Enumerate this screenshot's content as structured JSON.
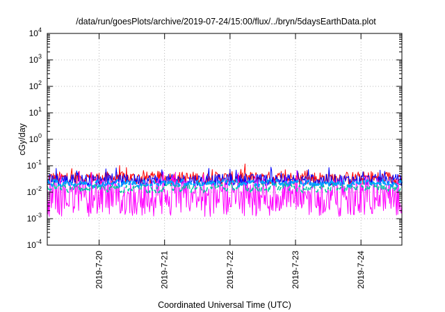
{
  "chart_data": {
    "type": "line",
    "title": "/data/run/goesPlots/archive/2019-07-24/15:00/flux/../bryn/5daysEarthData.plot",
    "xlabel": "Coordinated Universal Time (UTC)",
    "ylabel": "cGy/day",
    "xlim": [
      "2019-07-19T05:00",
      "2019-07-24T15:00"
    ],
    "x_ticks": [
      "2019-7-20",
      "2019-7-21",
      "2019-7-22",
      "2019-7-23",
      "2019-7-24"
    ],
    "x_tick_dates": [
      "2019-07-20",
      "2019-07-21",
      "2019-07-22",
      "2019-07-23",
      "2019-07-24"
    ],
    "y_scale": "log",
    "ylim": [
      0.0001,
      10000
    ],
    "y_ticks": [
      {
        "base": "10",
        "exp": "4",
        "value": 10000
      },
      {
        "base": "10",
        "exp": "3",
        "value": 1000
      },
      {
        "base": "10",
        "exp": "2",
        "value": 100
      },
      {
        "base": "10",
        "exp": "1",
        "value": 10
      },
      {
        "base": "10",
        "exp": "0",
        "value": 1
      },
      {
        "base": "10",
        "exp": "-1",
        "value": 0.1
      },
      {
        "base": "10",
        "exp": "-2",
        "value": 0.01
      },
      {
        "base": "10",
        "exp": "-3",
        "value": 0.001
      },
      {
        "base": "10",
        "exp": "-4",
        "value": 0.0001
      }
    ],
    "grid": true,
    "legend": "none",
    "series": [
      {
        "color": "#ff0000",
        "style": "solid",
        "center": 0.034,
        "spread": 0.25,
        "spikes": 0.045,
        "width": 1
      },
      {
        "color": "#0000ff",
        "style": "solid",
        "center": 0.029,
        "spread": 0.22,
        "spikes": 0.07,
        "width": 1
      },
      {
        "color": "#ff00ff",
        "style": "solid",
        "center": 0.006,
        "spread": 0.7,
        "spikes": 0.03,
        "width": 1
      },
      {
        "color": "#00c8a0",
        "style": "dashed",
        "center": 0.015,
        "spread": 0.25,
        "spikes": 0.0,
        "width": 1.6
      },
      {
        "color": "#00a0ff",
        "style": "dashed",
        "center": 0.022,
        "spread": 0.18,
        "spikes": 0.0,
        "width": 2.6
      }
    ]
  }
}
